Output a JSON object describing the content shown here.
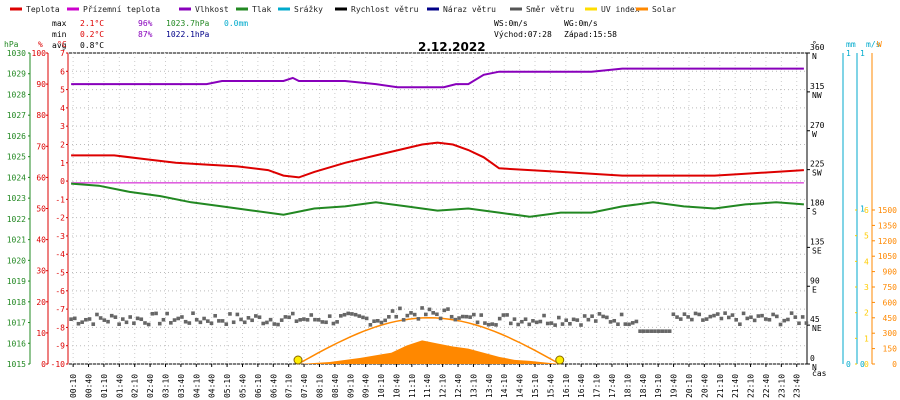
{
  "legend": [
    {
      "label": "Teplota",
      "color": "#dd0000"
    },
    {
      "label": "Přízemní teplota",
      "color": "#cc00cc"
    },
    {
      "label": "Vlhkost",
      "color": "#8800bb"
    },
    {
      "label": "Tlak",
      "color": "#228822"
    },
    {
      "label": "Srážky",
      "color": "#00aacc"
    },
    {
      "label": "Rychlost větru",
      "color": "#000000"
    },
    {
      "label": "Náraz větru",
      "color": "#000088"
    },
    {
      "label": "Směr větru",
      "color": "#555555"
    },
    {
      "label": "UV index",
      "color": "#ffdd00"
    },
    {
      "label": "Solar",
      "color": "#ff8800"
    }
  ],
  "stats": {
    "max_label": "max",
    "max_temp": "2.1°C",
    "max_hum": "96%",
    "max_press": "1023.7hPa",
    "rain": "0.0mm",
    "min_label": "min",
    "min_temp": "0.2°C",
    "min_hum": "87%",
    "min_press": "1022.1hPa",
    "avg_label": "avg",
    "avg_temp": "0.8°C"
  },
  "wind_info": {
    "ws": "WS:0m/s",
    "wg": "WG:0m/s",
    "sunrise": "Východ:07:28",
    "sunset": "Západ:15:58"
  },
  "date": "2.12.2022",
  "axis_units": {
    "hpa": "hPa",
    "pct": "%",
    "degc": "°C",
    "deg": "°",
    "mm": "mm",
    "ms": "m/s",
    "w": "W",
    "cas": "čas"
  },
  "colors": {
    "pressure": "#228822",
    "humidity": "#dd0000",
    "temp": "#dd0000",
    "ms": "#00aacc",
    "solar": "#ff8800",
    "uv": "#ffdd00"
  },
  "chart_data": {
    "type": "line",
    "x_unit": "time of day (h)",
    "x_ticks": [
      "00:10",
      "00:40",
      "01:10",
      "01:40",
      "02:10",
      "02:40",
      "03:10",
      "03:40",
      "04:10",
      "04:40",
      "05:10",
      "05:40",
      "06:10",
      "06:40",
      "07:10",
      "07:40",
      "08:10",
      "08:40",
      "09:10",
      "09:40",
      "10:10",
      "10:40",
      "11:10",
      "11:40",
      "12:10",
      "12:40",
      "13:10",
      "13:40",
      "14:10",
      "14:40",
      "15:10",
      "15:40",
      "16:10",
      "16:40",
      "17:10",
      "17:40",
      "18:10",
      "18:40",
      "19:10",
      "19:40",
      "20:10",
      "20:40",
      "21:10",
      "21:40",
      "22:10",
      "22:40",
      "23:10",
      "23:40"
    ],
    "axes": {
      "pressure_hpa": {
        "ticks": [
          1015,
          1016,
          1017,
          1018,
          1019,
          1020,
          1021,
          1022,
          1023,
          1024,
          1025,
          1026,
          1027,
          1028,
          1029,
          1030
        ]
      },
      "humidity_pct": {
        "ticks": [
          0,
          10,
          20,
          30,
          40,
          50,
          60,
          70,
          80,
          90,
          100
        ]
      },
      "temp_c": {
        "ticks": [
          -10,
          -9,
          -8,
          -7,
          -6,
          -5,
          -4,
          -3,
          -2,
          -1,
          0,
          1,
          2,
          3,
          4,
          5,
          6,
          7
        ]
      },
      "wind_dir_deg": {
        "ticks": [
          {
            "v": "0",
            "c": "N"
          },
          {
            "v": "45",
            "c": "NE"
          },
          {
            "v": "90",
            "c": "E"
          },
          {
            "v": "135",
            "c": "SE"
          },
          {
            "v": "180",
            "c": "S"
          },
          {
            "v": "225",
            "c": "SW"
          },
          {
            "v": "270",
            "c": "W"
          },
          {
            "v": "315",
            "c": "NW"
          },
          {
            "v": "360",
            "c": "N"
          }
        ]
      },
      "rain_mm": {
        "ticks": [
          "0",
          "1"
        ]
      },
      "wind_ms": {
        "ticks": [
          "0",
          "1",
          "1"
        ]
      },
      "uv": {
        "ticks": [
          0,
          1,
          2,
          3,
          4,
          5,
          6
        ]
      },
      "solar_w": {
        "ticks": [
          0,
          150,
          300,
          450,
          600,
          750,
          900,
          1050,
          1200,
          1350,
          1500
        ]
      }
    },
    "series": [
      {
        "name": "Teplota",
        "axis": "temp_c",
        "points": [
          [
            0.1,
            1.4
          ],
          [
            1.5,
            1.4
          ],
          [
            2.5,
            1.2
          ],
          [
            3.5,
            1.0
          ],
          [
            4.5,
            0.9
          ],
          [
            5.5,
            0.8
          ],
          [
            6.5,
            0.6
          ],
          [
            7.0,
            0.3
          ],
          [
            7.5,
            0.2
          ],
          [
            8.0,
            0.5
          ],
          [
            9.0,
            1.0
          ],
          [
            10.0,
            1.4
          ],
          [
            11.0,
            1.8
          ],
          [
            11.5,
            2.0
          ],
          [
            12.0,
            2.1
          ],
          [
            12.5,
            2.0
          ],
          [
            13.0,
            1.7
          ],
          [
            13.5,
            1.3
          ],
          [
            14.0,
            0.7
          ],
          [
            15.0,
            0.6
          ],
          [
            16.0,
            0.5
          ],
          [
            17.0,
            0.4
          ],
          [
            18.0,
            0.3
          ],
          [
            19.0,
            0.3
          ],
          [
            20.0,
            0.3
          ],
          [
            21.0,
            0.3
          ],
          [
            22.0,
            0.4
          ],
          [
            23.0,
            0.5
          ],
          [
            23.9,
            0.6
          ]
        ]
      },
      {
        "name": "Přízemní teplota",
        "axis": "temp_c",
        "points": [
          [
            0.1,
            -0.1
          ],
          [
            23.9,
            -0.1
          ]
        ]
      },
      {
        "name": "Vlhkost",
        "axis": "humidity_pct",
        "points": [
          [
            0.1,
            90
          ],
          [
            4.5,
            90
          ],
          [
            5.0,
            91
          ],
          [
            7.0,
            91
          ],
          [
            7.3,
            92
          ],
          [
            7.5,
            91
          ],
          [
            8.5,
            91
          ],
          [
            9.0,
            91
          ],
          [
            10.0,
            90
          ],
          [
            10.7,
            89
          ],
          [
            11.5,
            89
          ],
          [
            12.2,
            89
          ],
          [
            12.6,
            90
          ],
          [
            13.0,
            90
          ],
          [
            13.5,
            93
          ],
          [
            14.0,
            94
          ],
          [
            16.0,
            94
          ],
          [
            17.0,
            94
          ],
          [
            18.0,
            95
          ],
          [
            19.0,
            95
          ],
          [
            21.0,
            95
          ],
          [
            23.9,
            95
          ]
        ]
      },
      {
        "name": "Tlak",
        "axis": "pressure_hpa",
        "points": [
          [
            0.1,
            1023.7
          ],
          [
            1.0,
            1023.6
          ],
          [
            2.0,
            1023.3
          ],
          [
            3.0,
            1023.1
          ],
          [
            4.0,
            1022.8
          ],
          [
            5.0,
            1022.6
          ],
          [
            6.0,
            1022.4
          ],
          [
            7.0,
            1022.2
          ],
          [
            8.0,
            1022.5
          ],
          [
            9.0,
            1022.6
          ],
          [
            10.0,
            1022.8
          ],
          [
            11.0,
            1022.6
          ],
          [
            12.0,
            1022.4
          ],
          [
            13.0,
            1022.5
          ],
          [
            14.0,
            1022.3
          ],
          [
            15.0,
            1022.1
          ],
          [
            16.0,
            1022.3
          ],
          [
            17.0,
            1022.3
          ],
          [
            18.0,
            1022.6
          ],
          [
            19.0,
            1022.8
          ],
          [
            20.0,
            1022.6
          ],
          [
            21.0,
            1022.5
          ],
          [
            22.0,
            1022.7
          ],
          [
            23.0,
            1022.8
          ],
          [
            23.9,
            1022.7
          ]
        ]
      }
    ],
    "wind_direction": {
      "axis": "wind_dir_deg",
      "approx_level": 52,
      "note": "scattered square markers mostly 40–65°"
    },
    "solar": {
      "axis": "solar_w",
      "sunrise_h": 7.47,
      "sunset_h": 15.97,
      "clear_sky_peak_w": 450,
      "measured": [
        [
          7.5,
          0
        ],
        [
          8.5,
          20
        ],
        [
          9.5,
          60
        ],
        [
          10.5,
          110
        ],
        [
          11.0,
          180
        ],
        [
          11.5,
          230
        ],
        [
          12.0,
          200
        ],
        [
          12.5,
          170
        ],
        [
          13.0,
          150
        ],
        [
          13.5,
          110
        ],
        [
          14.0,
          70
        ],
        [
          14.5,
          40
        ],
        [
          15.0,
          30
        ],
        [
          15.5,
          15
        ],
        [
          16.0,
          0
        ]
      ]
    }
  }
}
